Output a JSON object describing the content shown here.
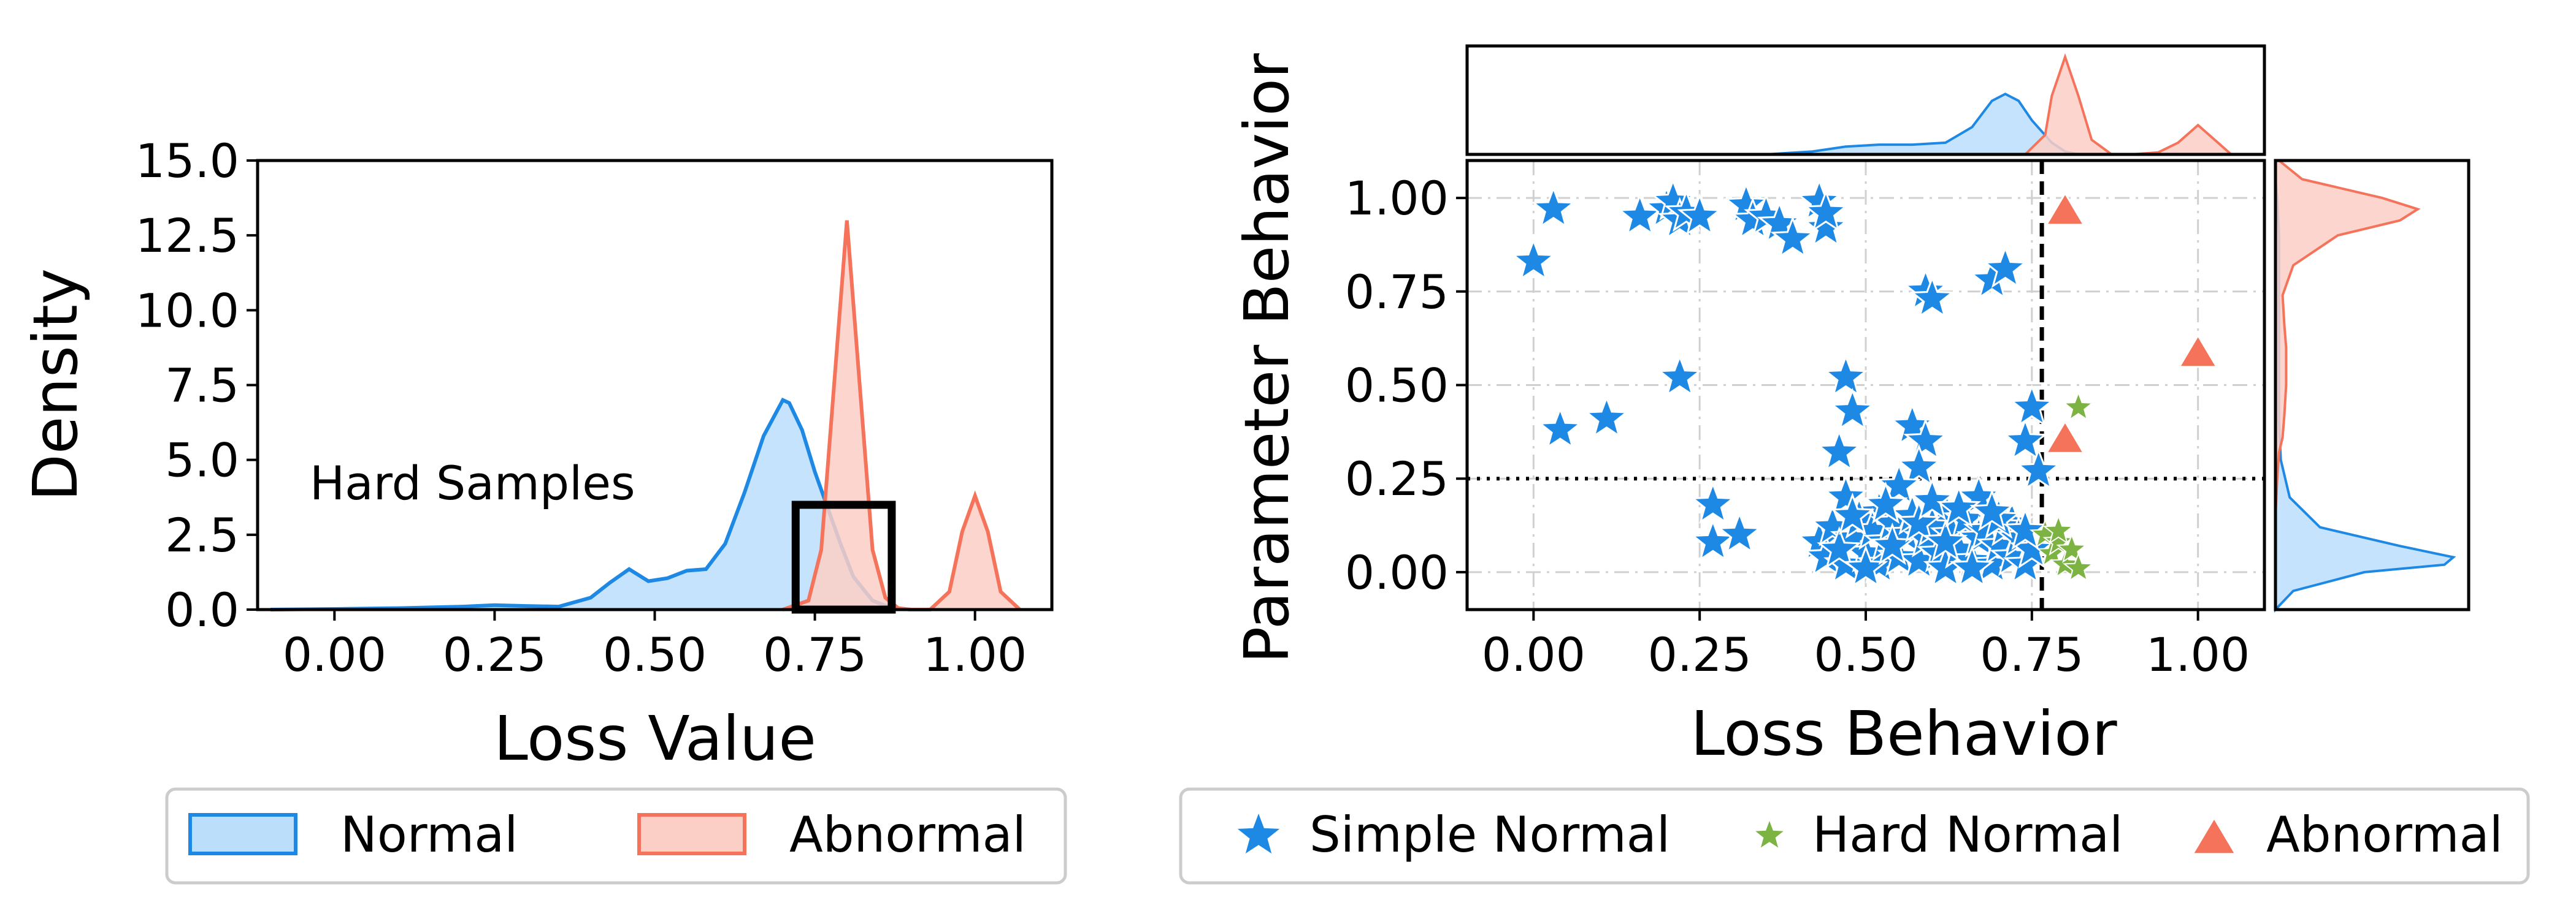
{
  "colors": {
    "normal": "#1E88E5",
    "normal_fill": "#BBDEFB",
    "abnormal": "#F4735A",
    "abnormal_fill": "#FBCFC6",
    "hard_normal": "#7CB342",
    "box": "#000000"
  },
  "chart_data": [
    {
      "type": "area",
      "kind": "kde",
      "xlabel": "Loss Value",
      "ylabel": "Density",
      "xlim": [
        -0.12,
        1.12
      ],
      "ylim": [
        0,
        15
      ],
      "xticks": [
        0.0,
        0.25,
        0.5,
        0.75,
        1.0
      ],
      "xtick_labels": [
        "0.00",
        "0.25",
        "0.50",
        "0.75",
        "1.00"
      ],
      "yticks": [
        0,
        2.5,
        5,
        7.5,
        10,
        12.5,
        15
      ],
      "ytick_labels": [
        "0.0",
        "2.5",
        "5.0",
        "7.5",
        "10.0",
        "12.5",
        "15.0"
      ],
      "grid": false,
      "annotation": {
        "text": "Hard Samples",
        "x": 0.23,
        "y": 4.2
      },
      "highlight_box": {
        "x0": 0.72,
        "x1": 0.87,
        "y0": 0,
        "y1": 3.5
      },
      "legend": {
        "placement": "below",
        "entries": [
          "Normal",
          "Abnormal"
        ]
      },
      "series": [
        {
          "name": "Normal",
          "x": [
            -0.1,
            0.0,
            0.1,
            0.2,
            0.25,
            0.3,
            0.35,
            0.4,
            0.43,
            0.46,
            0.49,
            0.52,
            0.55,
            0.58,
            0.61,
            0.64,
            0.67,
            0.7,
            0.71,
            0.73,
            0.75,
            0.77,
            0.79,
            0.81,
            0.84,
            0.87,
            0.9
          ],
          "y": [
            0.0,
            0.02,
            0.05,
            0.1,
            0.15,
            0.12,
            0.1,
            0.4,
            0.9,
            1.35,
            0.95,
            1.05,
            1.3,
            1.35,
            2.2,
            3.9,
            5.8,
            7.0,
            6.9,
            6.0,
            4.6,
            3.4,
            2.2,
            1.1,
            0.3,
            0.05,
            0.0
          ]
        },
        {
          "name": "Abnormal",
          "x": [
            0.7,
            0.74,
            0.76,
            0.78,
            0.8,
            0.82,
            0.84,
            0.86,
            0.88,
            0.9,
            0.93,
            0.96,
            0.98,
            1.0,
            1.02,
            1.04,
            1.07
          ],
          "y": [
            0.0,
            0.3,
            2.0,
            7.5,
            13.0,
            7.5,
            2.0,
            0.4,
            0.05,
            0.0,
            0.0,
            0.6,
            2.6,
            3.8,
            2.6,
            0.6,
            0.0
          ]
        }
      ]
    },
    {
      "type": "scatter",
      "xlabel": "Loss Behavior",
      "ylabel": "Parameter Behavior",
      "xlim": [
        -0.1,
        1.1
      ],
      "ylim": [
        -0.1,
        1.1
      ],
      "xticks": [
        0.0,
        0.25,
        0.5,
        0.75,
        1.0
      ],
      "xtick_labels": [
        "0.00",
        "0.25",
        "0.50",
        "0.75",
        "1.00"
      ],
      "yticks": [
        0.0,
        0.25,
        0.5,
        0.75,
        1.0
      ],
      "ytick_labels": [
        "0.00",
        "0.25",
        "0.50",
        "0.75",
        "1.00"
      ],
      "grid": true,
      "vline": {
        "x": 0.765,
        "style": "dashed"
      },
      "hline": {
        "y": 0.25,
        "style": "dotted"
      },
      "legend": {
        "placement": "below",
        "entries": [
          "Simple Normal",
          "Hard Normal",
          "Abnormal"
        ]
      },
      "series": [
        {
          "name": "Simple Normal",
          "marker": "star",
          "points": [
            [
              0.0,
              0.83
            ],
            [
              0.03,
              0.97
            ],
            [
              0.16,
              0.95
            ],
            [
              0.2,
              0.97
            ],
            [
              0.21,
              0.99
            ],
            [
              0.22,
              0.94
            ],
            [
              0.23,
              0.96
            ],
            [
              0.25,
              0.95
            ],
            [
              0.32,
              0.98
            ],
            [
              0.33,
              0.94
            ],
            [
              0.35,
              0.95
            ],
            [
              0.37,
              0.93
            ],
            [
              0.39,
              0.89
            ],
            [
              0.43,
              0.99
            ],
            [
              0.44,
              0.92
            ],
            [
              0.44,
              0.96
            ],
            [
              0.59,
              0.75
            ],
            [
              0.6,
              0.73
            ],
            [
              0.69,
              0.78
            ],
            [
              0.71,
              0.81
            ],
            [
              0.04,
              0.38
            ],
            [
              0.11,
              0.41
            ],
            [
              0.22,
              0.52
            ],
            [
              0.27,
              0.18
            ],
            [
              0.27,
              0.08
            ],
            [
              0.31,
              0.1
            ],
            [
              0.47,
              0.52
            ],
            [
              0.48,
              0.43
            ],
            [
              0.46,
              0.32
            ],
            [
              0.57,
              0.39
            ],
            [
              0.59,
              0.35
            ],
            [
              0.58,
              0.28
            ],
            [
              0.74,
              0.35
            ],
            [
              0.75,
              0.44
            ],
            [
              0.76,
              0.27
            ],
            [
              0.47,
              0.2
            ],
            [
              0.52,
              0.16
            ],
            [
              0.55,
              0.23
            ],
            [
              0.62,
              0.16
            ],
            [
              0.67,
              0.2
            ],
            [
              0.72,
              0.13
            ],
            [
              0.43,
              0.08
            ],
            [
              0.44,
              0.04
            ],
            [
              0.45,
              0.12
            ],
            [
              0.47,
              0.02
            ],
            [
              0.48,
              0.09
            ],
            [
              0.49,
              0.14
            ],
            [
              0.5,
              0.05
            ],
            [
              0.51,
              0.11
            ],
            [
              0.52,
              0.02
            ],
            [
              0.53,
              0.08
            ],
            [
              0.54,
              0.13
            ],
            [
              0.55,
              0.04
            ],
            [
              0.56,
              0.1
            ],
            [
              0.57,
              0.15
            ],
            [
              0.58,
              0.03
            ],
            [
              0.59,
              0.09
            ],
            [
              0.6,
              0.12
            ],
            [
              0.61,
              0.05
            ],
            [
              0.62,
              0.01
            ],
            [
              0.63,
              0.1
            ],
            [
              0.64,
              0.06
            ],
            [
              0.65,
              0.14
            ],
            [
              0.66,
              0.03
            ],
            [
              0.67,
              0.09
            ],
            [
              0.68,
              0.11
            ],
            [
              0.69,
              0.02
            ],
            [
              0.7,
              0.07
            ],
            [
              0.71,
              0.12
            ],
            [
              0.72,
              0.04
            ],
            [
              0.73,
              0.09
            ],
            [
              0.74,
              0.02
            ],
            [
              0.75,
              0.06
            ],
            [
              0.46,
              0.06
            ],
            [
              0.5,
              0.01
            ],
            [
              0.54,
              0.07
            ],
            [
              0.58,
              0.13
            ],
            [
              0.62,
              0.08
            ],
            [
              0.66,
              0.01
            ],
            [
              0.7,
              0.14
            ],
            [
              0.74,
              0.11
            ],
            [
              0.48,
              0.15
            ],
            [
              0.53,
              0.18
            ],
            [
              0.6,
              0.19
            ],
            [
              0.64,
              0.17
            ],
            [
              0.69,
              0.16
            ]
          ]
        },
        {
          "name": "Hard Normal",
          "marker": "star",
          "points": [
            [
              0.77,
              0.1
            ],
            [
              0.78,
              0.05
            ],
            [
              0.79,
              0.08
            ],
            [
              0.8,
              0.02
            ],
            [
              0.81,
              0.06
            ],
            [
              0.82,
              0.01
            ],
            [
              0.79,
              0.11
            ],
            [
              0.82,
              0.44
            ]
          ]
        },
        {
          "name": "Abnormal",
          "marker": "triangle",
          "points": [
            [
              0.8,
              0.96
            ],
            [
              0.8,
              0.35
            ],
            [
              1.0,
              0.58
            ]
          ]
        }
      ],
      "marginal_top": [
        {
          "name": "Normal",
          "x": [
            0.35,
            0.42,
            0.47,
            0.52,
            0.57,
            0.62,
            0.66,
            0.69,
            0.71,
            0.73,
            0.75,
            0.78,
            0.8,
            0.82
          ],
          "y": [
            0.0,
            0.03,
            0.08,
            0.1,
            0.1,
            0.12,
            0.28,
            0.55,
            0.62,
            0.55,
            0.35,
            0.12,
            0.03,
            0.0
          ]
        },
        {
          "name": "Abnormal",
          "x": [
            0.74,
            0.77,
            0.78,
            0.8,
            0.82,
            0.84,
            0.87,
            0.9,
            0.94,
            0.97,
            1.0,
            1.03,
            1.05
          ],
          "y": [
            0.0,
            0.2,
            0.6,
            1.0,
            0.6,
            0.15,
            0.0,
            0.0,
            0.02,
            0.12,
            0.3,
            0.12,
            0.0
          ]
        }
      ],
      "marginal_right": [
        {
          "name": "Normal",
          "y": [
            -0.1,
            -0.05,
            0.0,
            0.02,
            0.04,
            0.07,
            0.12,
            0.2,
            0.3,
            0.4,
            0.5,
            0.6,
            0.7,
            0.8,
            0.9,
            1.0,
            1.05
          ],
          "density": [
            0.0,
            0.1,
            0.5,
            0.95,
            1.0,
            0.7,
            0.25,
            0.08,
            0.03,
            0.02,
            0.02,
            0.02,
            0.02,
            0.02,
            0.02,
            0.01,
            0.0
          ]
        },
        {
          "name": "Abnormal",
          "y": [
            0.15,
            0.25,
            0.32,
            0.36,
            0.42,
            0.5,
            0.56,
            0.6,
            0.66,
            0.74,
            0.82,
            0.9,
            0.94,
            0.97,
            1.0,
            1.05,
            1.1
          ],
          "density": [
            0.0,
            0.01,
            0.02,
            0.04,
            0.05,
            0.06,
            0.06,
            0.06,
            0.05,
            0.04,
            0.1,
            0.35,
            0.7,
            0.8,
            0.6,
            0.15,
            0.02
          ]
        }
      ]
    }
  ]
}
